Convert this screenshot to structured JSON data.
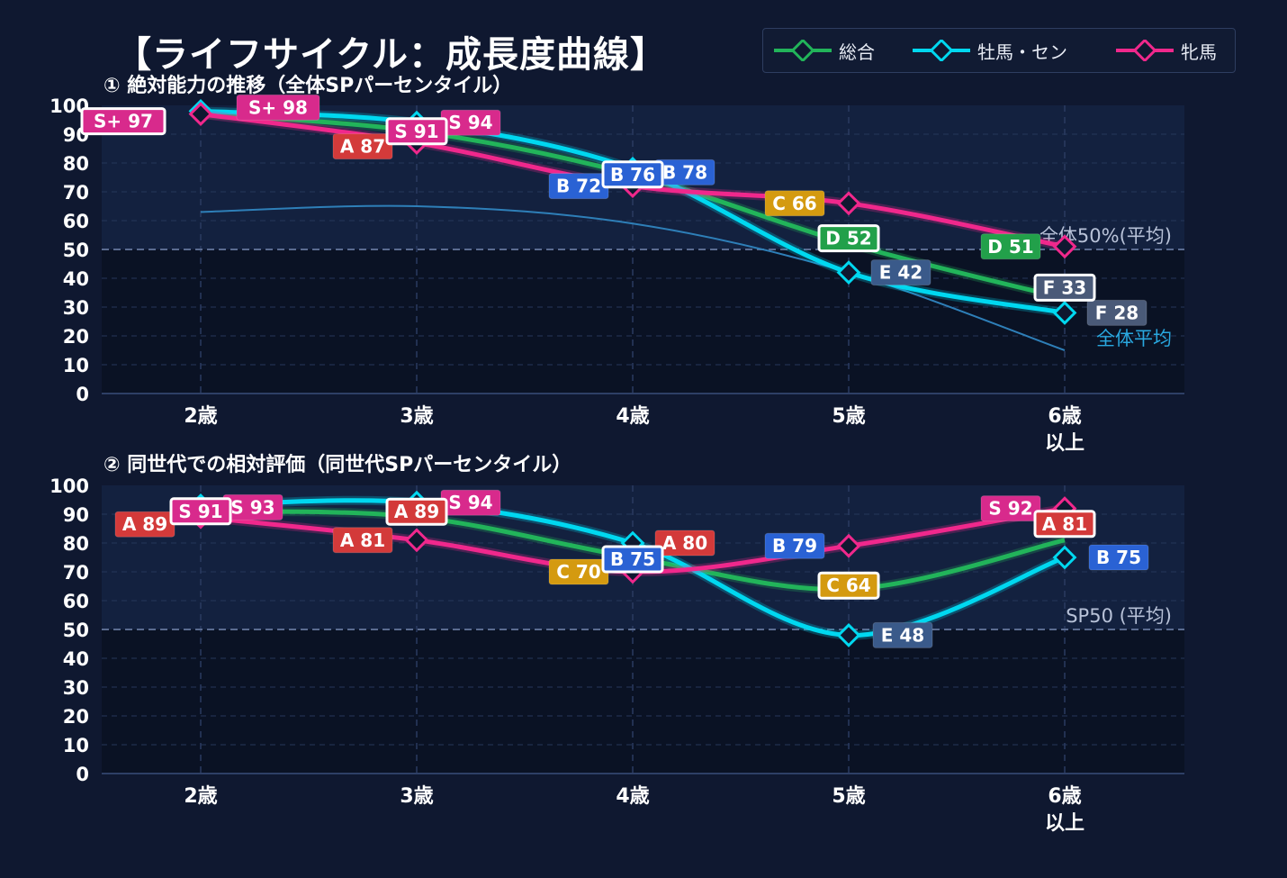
{
  "title": "【ライフサイクル：成長度曲線】",
  "legend": {
    "total": "総合",
    "stallion": "牡馬・セン",
    "mare": "牝馬"
  },
  "colors": {
    "total": "#22b45a",
    "stallion": "#00d8f0",
    "mare": "#f0288c",
    "background": "#0f1830",
    "plot_upper": "#13213f",
    "plot_lower": "#0a1224",
    "grade_S": "#d82a8c",
    "grade_A": "#d33a3a",
    "grade_B": "#2a62d4",
    "grade_C": "#d49a10",
    "grade_D": "#22a04a",
    "grade_E": "#3a5a8a",
    "grade_F": "#4a5a78"
  },
  "chart_data": [
    {
      "type": "line",
      "title": "① 絶対能力の推移（全体SPパーセンタイル）",
      "categories": [
        "2歳",
        "3歳",
        "4歳",
        "5歳",
        "6歳\n以上"
      ],
      "ylim": [
        0,
        100
      ],
      "yticks": [
        0,
        10,
        20,
        30,
        40,
        50,
        60,
        70,
        80,
        90,
        100
      ],
      "grid": true,
      "reference_line": {
        "value": 50,
        "label": "全体50%(平均)"
      },
      "average_curve": {
        "label": "全体平均",
        "values": [
          63,
          65,
          59,
          42,
          15
        ]
      },
      "series": [
        {
          "name": "総合",
          "key": "total",
          "values": [
            97,
            91,
            76,
            52,
            33
          ],
          "labels": [
            "S+ 97",
            "S 91",
            "B 76",
            "D 52",
            "F 33"
          ]
        },
        {
          "name": "牡馬・セン",
          "key": "stallion",
          "values": [
            98,
            94,
            78,
            42,
            28
          ],
          "labels": [
            "S+ 98",
            "S 94",
            "B 78",
            "E 42",
            "F 28"
          ]
        },
        {
          "name": "牝馬",
          "key": "mare",
          "values": [
            97,
            87,
            72,
            66,
            51
          ],
          "labels": [
            "S+ 97",
            "A 87",
            "B 72",
            "C 66",
            "D 51"
          ]
        }
      ]
    },
    {
      "type": "line",
      "title": "② 同世代での相対評価（同世代SPパーセンタイル）",
      "categories": [
        "2歳",
        "3歳",
        "4歳",
        "5歳",
        "6歳\n以上"
      ],
      "ylim": [
        0,
        100
      ],
      "yticks": [
        0,
        10,
        20,
        30,
        40,
        50,
        60,
        70,
        80,
        90,
        100
      ],
      "grid": true,
      "reference_line": {
        "value": 50,
        "label": "SP50 (平均)"
      },
      "series": [
        {
          "name": "総合",
          "key": "total",
          "values": [
            91,
            89,
            75,
            64,
            81
          ],
          "labels": [
            "S 91",
            "A 89",
            "B 75",
            "C 64",
            "A 81"
          ]
        },
        {
          "name": "牡馬・セン",
          "key": "stallion",
          "values": [
            93,
            94,
            80,
            48,
            75
          ],
          "labels": [
            "S 93",
            "S 94",
            "A 80",
            "E 48",
            "B 75"
          ]
        },
        {
          "name": "牝馬",
          "key": "mare",
          "values": [
            89,
            81,
            70,
            79,
            92
          ],
          "labels": [
            "A 89",
            "A 81",
            "C 70",
            "B 79",
            "S 92"
          ]
        }
      ]
    }
  ]
}
